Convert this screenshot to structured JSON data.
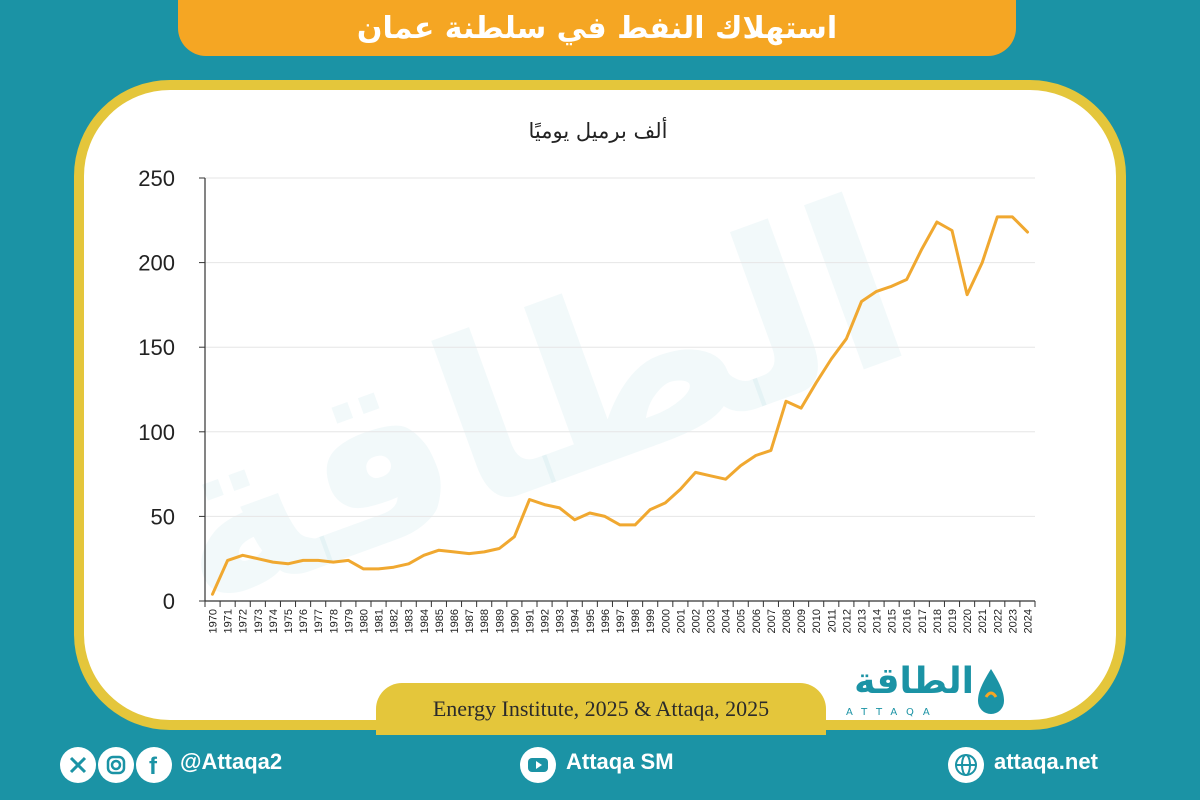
{
  "header": {
    "title": "استهلاك النفط في سلطنة عمان"
  },
  "chart_data": {
    "type": "line",
    "title": "",
    "ylabel": "ألف برميل يوميًا",
    "xlabel": "",
    "ylim": [
      0,
      250
    ],
    "yticks": [
      0,
      50,
      100,
      150,
      200,
      250
    ],
    "grid": true,
    "color": "#f0a830",
    "categories": [
      "1970",
      "1971",
      "1972",
      "1973",
      "1974",
      "1975",
      "1976",
      "1977",
      "1978",
      "1979",
      "1980",
      "1981",
      "1982",
      "1983",
      "1984",
      "1985",
      "1986",
      "1987",
      "1988",
      "1989",
      "1990",
      "1991",
      "1992",
      "1993",
      "1994",
      "1995",
      "1996",
      "1997",
      "1998",
      "1999",
      "2000",
      "2001",
      "2002",
      "2003",
      "2004",
      "2005",
      "2006",
      "2007",
      "2008",
      "2009",
      "2010",
      "2011",
      "2012",
      "2013",
      "2014",
      "2015",
      "2016",
      "2017",
      "2018",
      "2019",
      "2020",
      "2021",
      "2022",
      "2023",
      "2024"
    ],
    "values": [
      4,
      24,
      27,
      25,
      23,
      22,
      24,
      24,
      23,
      24,
      19,
      19,
      20,
      22,
      27,
      30,
      29,
      28,
      29,
      31,
      38,
      60,
      57,
      55,
      48,
      52,
      50,
      45,
      45,
      54,
      58,
      66,
      76,
      74,
      72,
      80,
      86,
      89,
      118,
      114,
      129,
      143,
      155,
      177,
      183,
      186,
      190,
      208,
      224,
      219,
      181,
      200,
      227,
      227,
      218
    ]
  },
  "source": {
    "text": "Energy Institute, 2025 & Attaqa, 2025"
  },
  "watermark": {
    "text": "الطاقة"
  },
  "brand": {
    "arabic": "الطاقة",
    "latin": "ATTAQA"
  },
  "footer": {
    "social_handle": "@Attaqa2",
    "youtube": "Attaqa SM",
    "website": "attaqa.net"
  },
  "colors": {
    "background": "#1b93a5",
    "accent": "#f5a623",
    "border": "#e4c63b",
    "brand": "#1b93a5"
  }
}
